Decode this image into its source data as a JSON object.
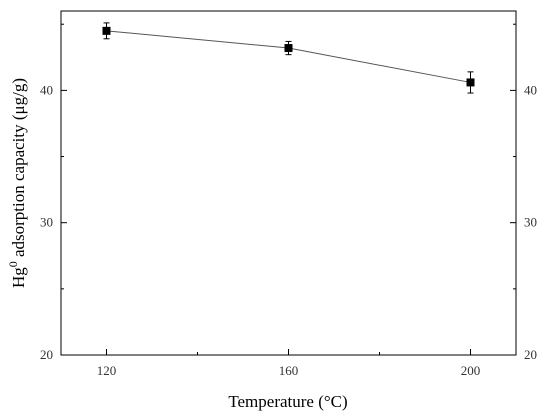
{
  "chart_data": {
    "type": "line",
    "x": [
      120,
      160,
      200
    ],
    "series": [
      {
        "values": [
          44.5,
          43.2,
          40.6
        ],
        "errors": [
          0.6,
          0.5,
          0.8
        ],
        "marker": "square",
        "color": "#000000"
      }
    ],
    "xlabel": "Temperature (°C)",
    "ylabel_base": "Hg",
    "ylabel_sup": "0",
    "ylabel_rest": " adsorption capacity (μg/g)",
    "xlim": [
      110,
      210
    ],
    "ylim": [
      20,
      46
    ],
    "xticks": [
      "120",
      "160",
      "200"
    ],
    "yticks": [
      "20",
      "30",
      "40"
    ],
    "right_axis_ticks": true,
    "grid": false,
    "legend": "none"
  }
}
